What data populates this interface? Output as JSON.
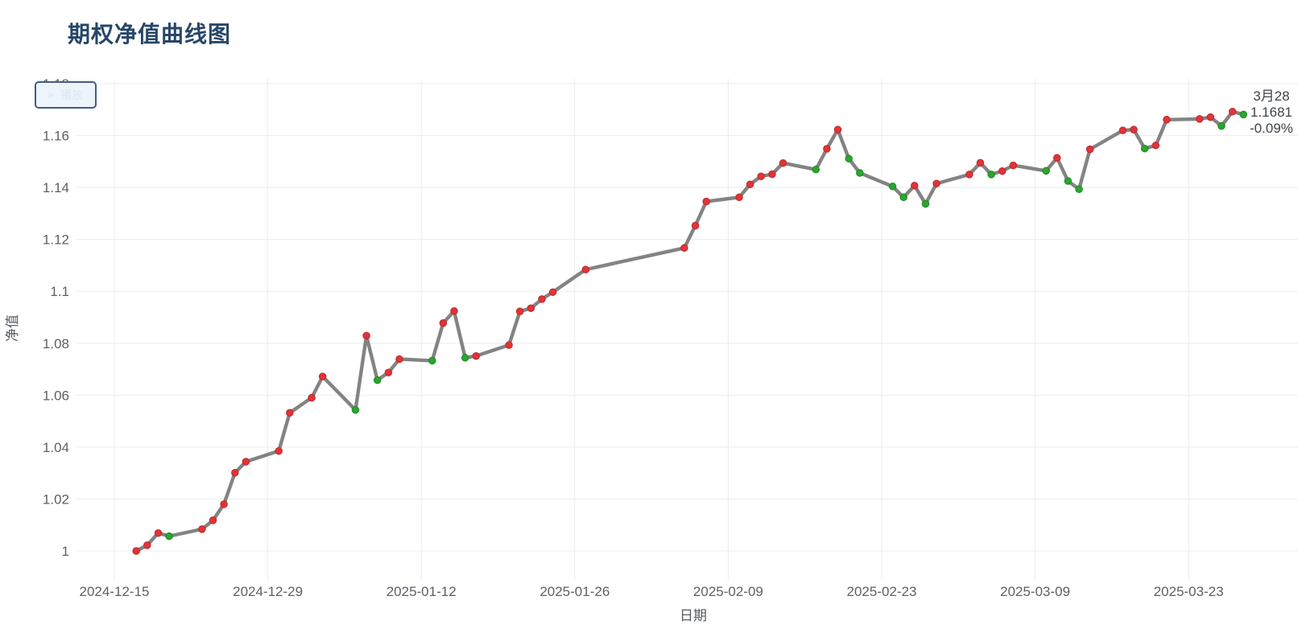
{
  "header": {
    "title": "期权净值曲线图"
  },
  "controls": {
    "play_button_label": "播放",
    "play_icon": "▶"
  },
  "annotation": {
    "date": "3月28",
    "value": "1.1681",
    "change": "-0.09%"
  },
  "chart_data": {
    "type": "line",
    "title": "期权净值曲线图",
    "xlabel": "日期",
    "ylabel": "净值",
    "x_ticks": [
      "2024-12-15",
      "2024-12-29",
      "2025-01-12",
      "2025-01-26",
      "2025-02-09",
      "2025-02-23",
      "2025-03-09",
      "2025-03-23"
    ],
    "y_ticks": [
      {
        "v": 1.0,
        "label": "1"
      },
      {
        "v": 1.02,
        "label": "1.02"
      },
      {
        "v": 1.04,
        "label": "1.04"
      },
      {
        "v": 1.06,
        "label": "1.06"
      },
      {
        "v": 1.08,
        "label": "1.08"
      },
      {
        "v": 1.1,
        "label": "1.1"
      },
      {
        "v": 1.12,
        "label": "1.12"
      },
      {
        "v": 1.14,
        "label": "1.14"
      },
      {
        "v": 1.16,
        "label": "1.16"
      },
      {
        "v": 1.18,
        "label": "1.18"
      }
    ],
    "ylim": [
      0.988,
      1.182
    ],
    "grid": true,
    "legend": "none",
    "colors": {
      "line": "#838383",
      "up": "#e23437",
      "up_edge": "#c02a2e",
      "down": "#2aa62e",
      "down_edge": "#1e8c24",
      "grid": "#e8edf4",
      "axis_label": "#5c6166",
      "axis_name": "#55595f",
      "title": "#274668",
      "annotation": "#3f444a"
    },
    "series": [
      {
        "name": "净值",
        "dates": [
          "2024-12-17",
          "2024-12-18",
          "2024-12-19",
          "2024-12-20",
          "2024-12-23",
          "2024-12-24",
          "2024-12-25",
          "2024-12-26",
          "2024-12-27",
          "2024-12-30",
          "2024-12-31",
          "2025-01-02",
          "2025-01-03",
          "2025-01-06",
          "2025-01-07",
          "2025-01-08",
          "2025-01-09",
          "2025-01-10",
          "2025-01-13",
          "2025-01-14",
          "2025-01-15",
          "2025-01-16",
          "2025-01-17",
          "2025-01-20",
          "2025-01-21",
          "2025-01-22",
          "2025-01-23",
          "2025-01-24",
          "2025-01-27",
          "2025-02-05",
          "2025-02-06",
          "2025-02-07",
          "2025-02-10",
          "2025-02-11",
          "2025-02-12",
          "2025-02-13",
          "2025-02-14",
          "2025-02-17",
          "2025-02-18",
          "2025-02-19",
          "2025-02-20",
          "2025-02-21",
          "2025-02-24",
          "2025-02-25",
          "2025-02-26",
          "2025-02-27",
          "2025-02-28",
          "2025-03-03",
          "2025-03-04",
          "2025-03-05",
          "2025-03-06",
          "2025-03-07",
          "2025-03-10",
          "2025-03-11",
          "2025-03-12",
          "2025-03-13",
          "2025-03-14",
          "2025-03-17",
          "2025-03-18",
          "2025-03-19",
          "2025-03-20",
          "2025-03-21",
          "2025-03-24",
          "2025-03-25",
          "2025-03-26",
          "2025-03-27",
          "2025-03-28"
        ],
        "values": [
          1.0,
          1.0022,
          1.0069,
          1.0057,
          1.0084,
          1.0118,
          1.018,
          1.0301,
          1.0344,
          1.0385,
          1.0532,
          1.059,
          1.0672,
          1.0543,
          1.0829,
          1.0658,
          1.0687,
          1.0739,
          1.0733,
          1.0878,
          1.0924,
          1.0744,
          1.0751,
          1.0793,
          1.0923,
          1.0935,
          1.097,
          1.0997,
          1.1084,
          1.1167,
          1.1253,
          1.1346,
          1.1362,
          1.1412,
          1.1443,
          1.1451,
          1.1494,
          1.1469,
          1.1549,
          1.1623,
          1.1511,
          1.1456,
          1.1404,
          1.1362,
          1.1407,
          1.1337,
          1.1415,
          1.145,
          1.1495,
          1.145,
          1.1463,
          1.1485,
          1.1464,
          1.1514,
          1.1425,
          1.1393,
          1.1547,
          1.162,
          1.1623,
          1.155,
          1.1562,
          1.1661,
          1.1664,
          1.1671,
          1.1637,
          1.1692,
          1.1681
        ]
      }
    ],
    "last_point": {
      "date_label": "3月28",
      "value_label": "1.1681",
      "change_label": "-0.09%"
    }
  }
}
